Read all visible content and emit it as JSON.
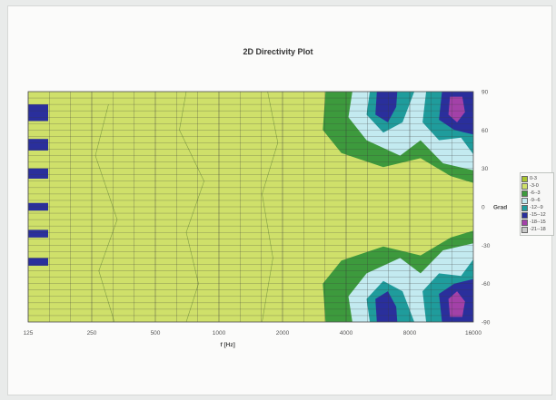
{
  "chart_data": {
    "type": "heatmap",
    "title": "2D Directivity Plot",
    "xlabel": "f [Hz]",
    "ylabel": "Grad",
    "x_scale": "log",
    "x_ticks": [
      "125",
      "250",
      "500",
      "1000",
      "2000",
      "4000",
      "8000",
      "16000"
    ],
    "y_ticks": [
      "90",
      "60",
      "30",
      "0",
      "-30",
      "-60",
      "-90"
    ],
    "xlim": [
      125,
      16000
    ],
    "ylim": [
      -90,
      90
    ],
    "legend_position": "right",
    "grid": true,
    "legend": [
      {
        "label": "0-3",
        "color": "#a9c52f"
      },
      {
        "label": "-3-0",
        "color": "#cfe06a"
      },
      {
        "label": "-6--3",
        "color": "#3d9a3d"
      },
      {
        "label": "-9--6",
        "color": "#c3eaf0"
      },
      {
        "label": "-12--9",
        "color": "#1f9c9c"
      },
      {
        "label": "-15--12",
        "color": "#2a2f9c"
      },
      {
        "label": "-18--15",
        "color": "#a341a8"
      },
      {
        "label": "-21--18",
        "color": "#c9c9c9"
      }
    ],
    "regions": [
      {
        "label": "-3-0",
        "description": "base level across most frequencies and angles"
      },
      {
        "label": "-6--3",
        "description": "outer lobe, 4000-16000 Hz, angles +/- 30 to 90"
      },
      {
        "label": "-9--6",
        "description": "4000-16000 Hz, angles +/- 40 to 90"
      },
      {
        "label": "-12--9",
        "description": "5000-16000 Hz, angles +/- 50 to 90"
      },
      {
        "label": "-15--12",
        "description": "around 6000 Hz and 16000 Hz, angles +/- 60 to 90; also 125 Hz bands"
      },
      {
        "label": "-18--15",
        "description": "around 13000 Hz, angles +/- 65 to 90"
      }
    ]
  }
}
